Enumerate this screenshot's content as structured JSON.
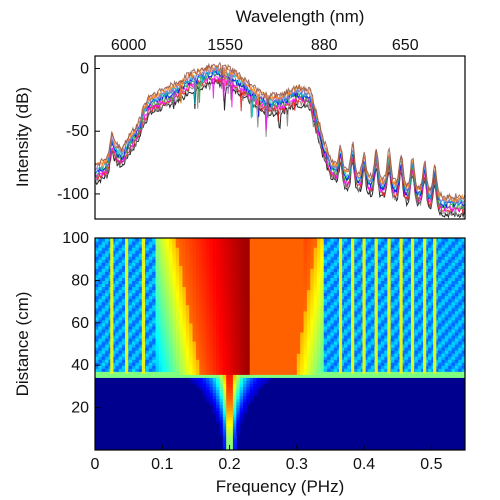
{
  "chart_data": [
    {
      "type": "line",
      "panel": "spectrum",
      "title": "",
      "top_axis_label": "Wavelength (nm)",
      "top_tick_labels": [
        "6000",
        "1550",
        "880",
        "650"
      ],
      "top_tick_frequencies_phz": [
        0.05,
        0.1935,
        0.3407,
        0.4612
      ],
      "ylabel": "Intensity (dB)",
      "ylim": [
        -120,
        10
      ],
      "yticks": [
        0,
        -50,
        -100
      ],
      "xlim": [
        0,
        0.55
      ],
      "legend": "none",
      "grid": false,
      "series_count": 10,
      "series_colors": [
        "#000000",
        "#7f7f7f",
        "#e41a1c",
        "#ff00ff",
        "#2ca02c",
        "#0000ff",
        "#00bfbf",
        "#9467bd",
        "#ff7f0e",
        "#8c564b"
      ],
      "envelope_x": [
        0,
        0.02,
        0.03,
        0.04,
        0.05,
        0.06,
        0.07,
        0.08,
        0.1,
        0.12,
        0.14,
        0.16,
        0.18,
        0.2,
        0.22,
        0.24,
        0.26,
        0.28,
        0.3,
        0.32,
        0.33,
        0.34,
        0.35,
        0.36,
        0.37,
        0.38,
        0.4,
        0.42,
        0.44,
        0.46,
        0.48,
        0.5,
        0.52
      ],
      "envelope_y": [
        -85,
        -78,
        -68,
        -72,
        -62,
        -55,
        -45,
        -30,
        -25,
        -20,
        -12,
        -8,
        -5,
        -8,
        -15,
        -25,
        -30,
        -28,
        -22,
        -25,
        -45,
        -65,
        -80,
        -85,
        -88,
        -90,
        -92,
        -95,
        -97,
        -100,
        -102,
        -105,
        -110
      ],
      "peaks": [
        {
          "x": 0.025,
          "y": -60
        },
        {
          "x": 0.047,
          "y": -65
        },
        {
          "x": 0.072,
          "y": -38
        },
        {
          "x": 0.365,
          "y": -70
        },
        {
          "x": 0.383,
          "y": -68
        },
        {
          "x": 0.4,
          "y": -75
        },
        {
          "x": 0.418,
          "y": -72
        },
        {
          "x": 0.437,
          "y": -74
        },
        {
          "x": 0.455,
          "y": -76
        },
        {
          "x": 0.472,
          "y": -78
        },
        {
          "x": 0.49,
          "y": -82
        },
        {
          "x": 0.505,
          "y": -85
        }
      ]
    },
    {
      "type": "heatmap",
      "panel": "evolution",
      "title": "",
      "xlabel": "Frequency (PHz)",
      "ylabel": "Distance (cm)",
      "xlim": [
        0,
        0.55
      ],
      "ylim": [
        0,
        100
      ],
      "xticks": [
        0,
        0.1,
        0.2,
        0.3,
        0.4,
        0.5
      ],
      "xtick_labels": [
        "0",
        "0.1",
        "0.2",
        "0.3",
        "0.4",
        "0.5"
      ],
      "yticks": [
        20,
        40,
        60,
        80,
        100
      ],
      "colormap": "jet",
      "center_frequency": 0.2,
      "onset_distance": 36,
      "continuum_edges_top": [
        0.12,
        0.33
      ],
      "background_color": "#00008f",
      "spectral_lines": [
        0.025,
        0.047,
        0.072,
        0.365,
        0.383,
        0.4,
        0.418,
        0.437,
        0.455,
        0.472,
        0.49,
        0.505
      ]
    }
  ]
}
